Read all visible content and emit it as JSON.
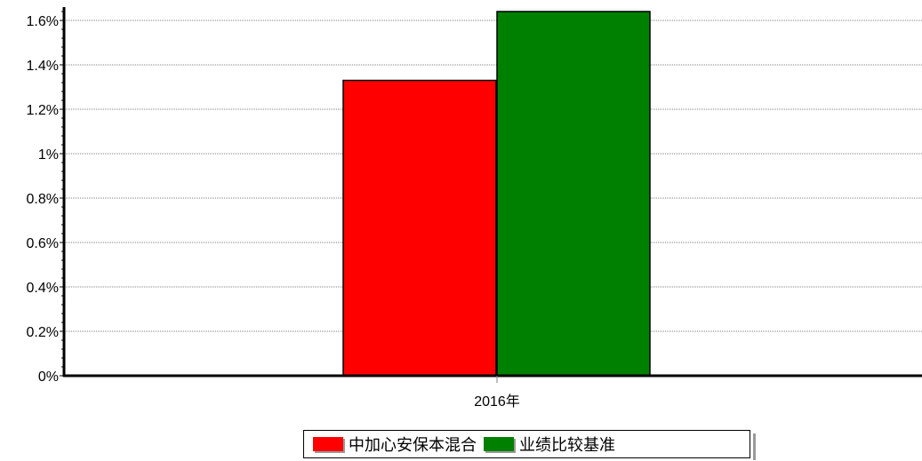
{
  "chart_data": {
    "type": "bar",
    "categories": [
      "2016年"
    ],
    "series": [
      {
        "name": "中加心安保本混合",
        "values": [
          1.33
        ],
        "color": "#ff0000"
      },
      {
        "name": "业绩比较基准",
        "values": [
          1.65
        ],
        "color": "#008000"
      }
    ],
    "y_axis": {
      "ticks": [
        0,
        0.2,
        0.4,
        0.6,
        0.8,
        1,
        1.2,
        1.4,
        1.6
      ],
      "tick_labels": [
        "0%",
        "0.2%",
        "0.4%",
        "0.6%",
        "0.8%",
        "1%",
        "1.2%",
        "1.4%",
        "1.6%"
      ],
      "range": [
        0,
        1.65
      ],
      "unit": "%"
    },
    "grid": true,
    "legend_position": "bottom-center",
    "title": "",
    "xlabel": "",
    "ylabel": ""
  }
}
